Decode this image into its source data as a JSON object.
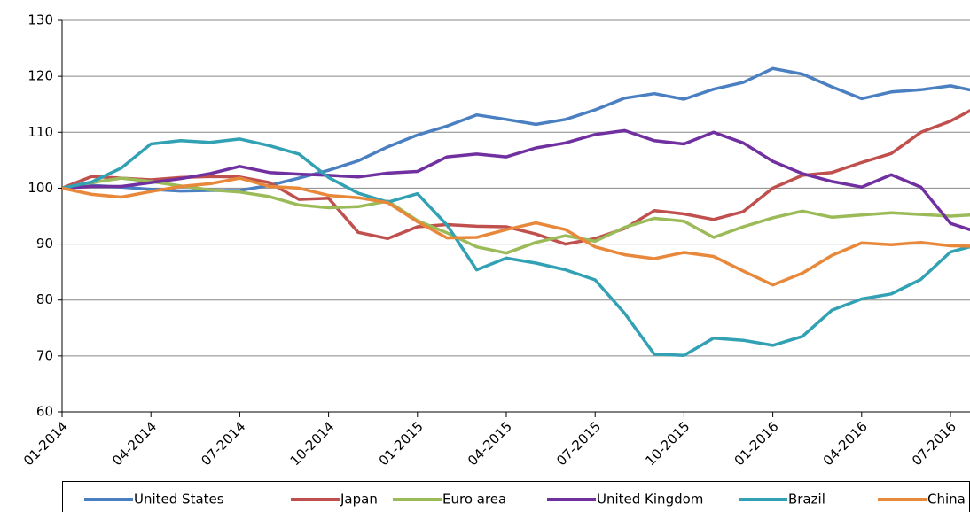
{
  "chart_data": {
    "type": "line",
    "categories": [
      "01-2014",
      null,
      null,
      "04-2014",
      null,
      null,
      "07-2014",
      null,
      null,
      "10-2014",
      null,
      null,
      "01-2015",
      null,
      null,
      "04-2015",
      null,
      null,
      "07-2015",
      null,
      null,
      "10-2015",
      null,
      null,
      "01-2016",
      null,
      null,
      "04-2016",
      null,
      null,
      "07-2016",
      null
    ],
    "series": [
      {
        "name": "United States",
        "color": "#4a7fc1",
        "values": [
          100,
          100.5,
          100.2,
          99.8,
          99.5,
          99.6,
          99.6,
          100.5,
          101.8,
          103.2,
          104.9,
          107.4,
          109.5,
          111.1,
          113.1,
          112.3,
          111.4,
          112.3,
          114.0,
          116.1,
          116.9,
          115.9,
          117.7,
          118.9,
          121.4,
          120.4,
          118.1,
          116.0,
          117.2,
          117.6,
          118.3,
          117.2
        ]
      },
      {
        "name": "Japan",
        "color": "#c0504d",
        "values": [
          100,
          102.1,
          101.8,
          101.5,
          101.9,
          102.1,
          102.0,
          101.0,
          98.0,
          98.2,
          92.1,
          91.0,
          93.1,
          93.5,
          93.2,
          93.1,
          91.8,
          90.0,
          91.0,
          92.8,
          96.0,
          95.4,
          94.4,
          95.8,
          100.0,
          102.3,
          102.8,
          104.6,
          106.2,
          110.0,
          112.0,
          114.8
        ]
      },
      {
        "name": "Euro area",
        "color": "#9bbb59",
        "values": [
          100,
          101.0,
          101.8,
          101.2,
          100.4,
          99.7,
          99.3,
          98.5,
          97.0,
          96.5,
          96.7,
          97.7,
          94.2,
          92.0,
          89.5,
          88.4,
          90.3,
          91.5,
          90.5,
          93.0,
          94.6,
          94.1,
          91.2,
          93.1,
          94.7,
          95.9,
          94.8,
          95.2,
          95.6,
          95.3,
          95.0,
          95.3
        ]
      },
      {
        "name": "United Kingdom",
        "color": "#7030a0",
        "values": [
          100,
          100.3,
          100.3,
          101.0,
          101.7,
          102.6,
          103.9,
          102.8,
          102.5,
          102.3,
          102.0,
          102.7,
          103.0,
          105.6,
          106.1,
          105.6,
          107.2,
          108.1,
          109.6,
          110.3,
          108.5,
          107.9,
          110.0,
          108.1,
          104.8,
          102.6,
          101.2,
          100.2,
          102.4,
          100.2,
          93.7,
          92.0
        ]
      },
      {
        "name": "Brazil",
        "color": "#31a1b3",
        "values": [
          100,
          101.1,
          103.6,
          107.9,
          108.5,
          108.2,
          108.8,
          107.6,
          106.1,
          101.9,
          99.1,
          97.5,
          99.0,
          93.4,
          85.4,
          87.5,
          86.6,
          85.4,
          83.6,
          77.6,
          70.3,
          70.1,
          73.2,
          72.8,
          71.9,
          73.5,
          78.2,
          80.2,
          81.1,
          83.7,
          88.6,
          90.0
        ]
      },
      {
        "name": "China",
        "color": "#e8883a",
        "values": [
          100,
          98.9,
          98.4,
          99.4,
          100.3,
          100.8,
          101.8,
          100.3,
          100.0,
          98.7,
          98.3,
          97.4,
          94.0,
          91.1,
          91.2,
          92.6,
          93.8,
          92.6,
          89.5,
          88.1,
          87.4,
          88.5,
          87.8,
          85.2,
          82.7,
          84.8,
          88.0,
          90.2,
          89.9,
          90.3,
          89.7,
          89.6
        ]
      }
    ],
    "ylim": [
      60,
      130
    ],
    "yticks": [
      60,
      70,
      80,
      90,
      100,
      110,
      120,
      130
    ],
    "grid": true,
    "legend": "bottom"
  }
}
